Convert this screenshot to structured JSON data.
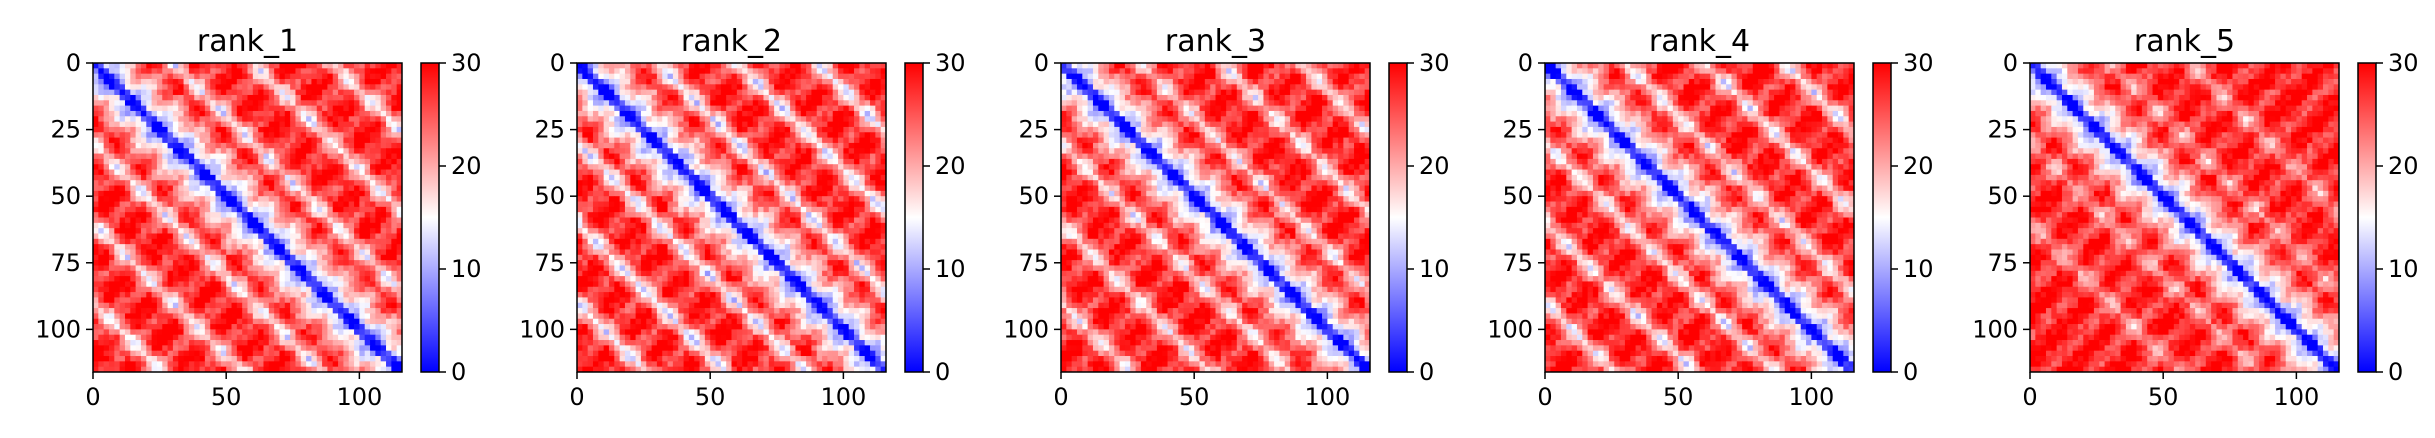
{
  "chart_data": [
    {
      "type": "heatmap",
      "title": "rank_1",
      "x_ticks": [
        0,
        50,
        100
      ],
      "y_ticks": [
        0,
        25,
        50,
        75,
        100
      ],
      "xlim": [
        0,
        116
      ],
      "ylim": [
        116,
        0
      ],
      "colorbar": {
        "ticks": [
          0,
          10,
          20,
          30
        ],
        "range": [
          0,
          30
        ],
        "colormap": "bwr",
        "low": "#0000ff",
        "mid": "#ffffff",
        "high": "#ff0000"
      },
      "pattern": {
        "diagonal_band": true,
        "off_diagonal_bands_at": [
          30,
          60,
          90
        ],
        "off_diagonal_strength": 0.75
      }
    },
    {
      "type": "heatmap",
      "title": "rank_2",
      "x_ticks": [
        0,
        50,
        100
      ],
      "y_ticks": [
        0,
        25,
        50,
        75,
        100
      ],
      "xlim": [
        0,
        116
      ],
      "ylim": [
        116,
        0
      ],
      "colorbar": {
        "ticks": [
          0,
          10,
          20,
          30
        ],
        "range": [
          0,
          30
        ],
        "colormap": "bwr",
        "low": "#0000ff",
        "mid": "#ffffff",
        "high": "#ff0000"
      },
      "pattern": {
        "diagonal_band": true,
        "off_diagonal_bands_at": [
          30,
          60,
          90
        ],
        "off_diagonal_strength": 0.85
      }
    },
    {
      "type": "heatmap",
      "title": "rank_3",
      "x_ticks": [
        0,
        50,
        100
      ],
      "y_ticks": [
        0,
        25,
        50,
        75,
        100
      ],
      "xlim": [
        0,
        116
      ],
      "ylim": [
        116,
        0
      ],
      "colorbar": {
        "ticks": [
          0,
          10,
          20,
          30
        ],
        "range": [
          0,
          30
        ],
        "colormap": "bwr",
        "low": "#0000ff",
        "mid": "#ffffff",
        "high": "#ff0000"
      },
      "pattern": {
        "diagonal_band": true,
        "off_diagonal_bands_at": [
          30,
          60,
          90
        ],
        "off_diagonal_strength": 0.7
      }
    },
    {
      "type": "heatmap",
      "title": "rank_4",
      "x_ticks": [
        0,
        50,
        100
      ],
      "y_ticks": [
        0,
        25,
        50,
        75,
        100
      ],
      "xlim": [
        0,
        116
      ],
      "ylim": [
        116,
        0
      ],
      "colorbar": {
        "ticks": [
          0,
          10,
          20,
          30
        ],
        "range": [
          0,
          30
        ],
        "colormap": "bwr",
        "low": "#0000ff",
        "mid": "#ffffff",
        "high": "#ff0000"
      },
      "pattern": {
        "diagonal_band": true,
        "off_diagonal_bands_at": [
          30,
          60,
          90
        ],
        "off_diagonal_strength": 0.75
      }
    },
    {
      "type": "heatmap",
      "title": "rank_5",
      "x_ticks": [
        0,
        50,
        100
      ],
      "y_ticks": [
        0,
        25,
        50,
        75,
        100
      ],
      "xlim": [
        0,
        116
      ],
      "ylim": [
        116,
        0
      ],
      "colorbar": {
        "ticks": [
          0,
          10,
          20,
          30
        ],
        "range": [
          0,
          30
        ],
        "colormap": "bwr",
        "low": "#0000ff",
        "mid": "#ffffff",
        "high": "#ff0000"
      },
      "pattern": {
        "diagonal_band": true,
        "off_diagonal_bands_at": [
          30,
          60
        ],
        "off_diagonal_strength": 0.45
      }
    }
  ]
}
